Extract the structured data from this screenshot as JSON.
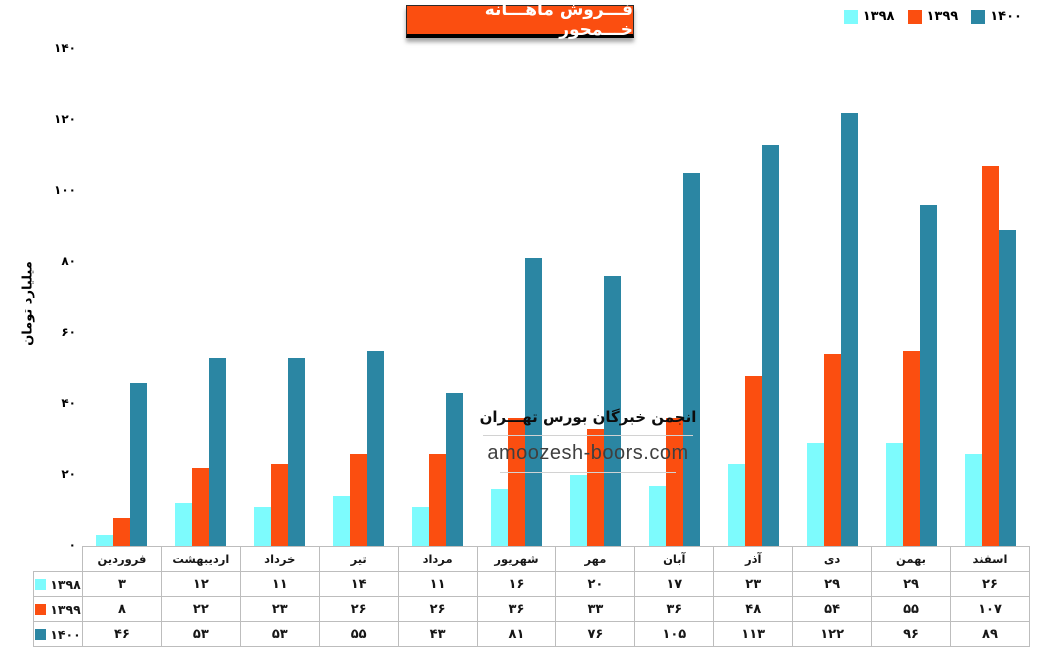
{
  "title": "فـــروش ماهـــانه خـــمحور",
  "colors": {
    "series_1398": "#7DFBFD",
    "series_1399": "#FB4E10",
    "series_1400": "#2B86A3",
    "title_bg": "#FB4E10",
    "table_border": "#bdbdbd"
  },
  "legend": {
    "items": [
      {
        "label": "۱۳۹۸",
        "color": "#7DFBFD"
      },
      {
        "label": "۱۳۹۹",
        "color": "#FB4E10"
      },
      {
        "label": "۱۴۰۰",
        "color": "#2B86A3"
      }
    ]
  },
  "y_axis": {
    "label": "میلیارد تومان",
    "ticks": [
      {
        "value": 0,
        "label": "۰"
      },
      {
        "value": 20,
        "label": "۲۰"
      },
      {
        "value": 40,
        "label": "۴۰"
      },
      {
        "value": 60,
        "label": "۶۰"
      },
      {
        "value": 80,
        "label": "۸۰"
      },
      {
        "value": 100,
        "label": "۱۰۰"
      },
      {
        "value": 120,
        "label": "۱۲۰"
      },
      {
        "value": 140,
        "label": "۱۴۰"
      }
    ]
  },
  "watermark": {
    "line1": "انجمن خبرگان بورس تهـــران",
    "line2": "amoozesh-boors.com"
  },
  "chart_data": {
    "type": "bar",
    "title": "فـــروش ماهـــانه خـــمحور",
    "xlabel": "",
    "ylabel": "میلیارد تومان",
    "ylim": [
      0,
      140
    ],
    "grid": false,
    "legend_position": "top-right",
    "categories": [
      "فروردین",
      "اردیبهشت",
      "خرداد",
      "تیر",
      "مرداد",
      "شهریور",
      "مهر",
      "آبان",
      "آذر",
      "دی",
      "بهمن",
      "اسفند"
    ],
    "series": [
      {
        "name": "۱۳۹۸",
        "color": "#7DFBFD",
        "values": [
          3,
          12,
          11,
          14,
          11,
          16,
          20,
          17,
          23,
          29,
          29,
          26
        ]
      },
      {
        "name": "۱۳۹۹",
        "color": "#FB4E10",
        "values": [
          8,
          22,
          23,
          26,
          26,
          36,
          33,
          36,
          48,
          54,
          55,
          107
        ]
      },
      {
        "name": "۱۴۰۰",
        "color": "#2B86A3",
        "values": [
          46,
          53,
          53,
          55,
          43,
          81,
          76,
          105,
          113,
          122,
          96,
          89
        ]
      }
    ]
  },
  "table": {
    "corner": "",
    "columns": [
      "فروردین",
      "اردیبهشت",
      "خرداد",
      "تیر",
      "مرداد",
      "شهریور",
      "مهر",
      "آبان",
      "آذر",
      "دی",
      "بهمن",
      "اسفند"
    ],
    "rows": [
      {
        "label": "۱۳۹۸",
        "color": "#7DFBFD",
        "cells": [
          "۳",
          "۱۲",
          "۱۱",
          "۱۴",
          "۱۱",
          "۱۶",
          "۲۰",
          "۱۷",
          "۲۳",
          "۲۹",
          "۲۹",
          "۲۶"
        ]
      },
      {
        "label": "۱۳۹۹",
        "color": "#FB4E10",
        "cells": [
          "۸",
          "۲۲",
          "۲۳",
          "۲۶",
          "۲۶",
          "۳۶",
          "۳۳",
          "۳۶",
          "۴۸",
          "۵۴",
          "۵۵",
          "۱۰۷"
        ]
      },
      {
        "label": "۱۴۰۰",
        "color": "#2B86A3",
        "cells": [
          "۴۶",
          "۵۳",
          "۵۳",
          "۵۵",
          "۴۳",
          "۸۱",
          "۷۶",
          "۱۰۵",
          "۱۱۳",
          "۱۲۲",
          "۹۶",
          "۸۹"
        ]
      }
    ]
  }
}
